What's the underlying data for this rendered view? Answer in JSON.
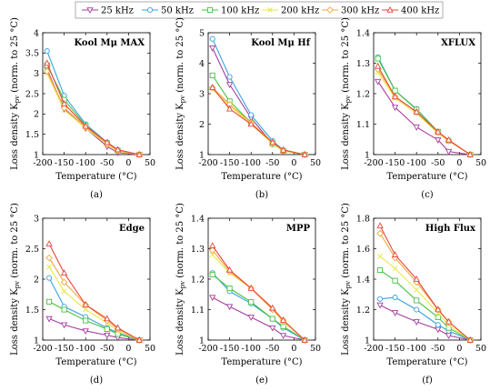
{
  "legend": {
    "entries": [
      {
        "label": "25 kHz",
        "color": "#a53f9f",
        "marker": "tri-down"
      },
      {
        "label": "50 kHz",
        "color": "#3aa3e0",
        "marker": "circle"
      },
      {
        "label": "100 kHz",
        "color": "#48c240",
        "marker": "square"
      },
      {
        "label": "200 kHz",
        "color": "#e8e84a",
        "marker": "x"
      },
      {
        "label": "300 kHz",
        "color": "#f4a742",
        "marker": "diamond"
      },
      {
        "label": "400 kHz",
        "color": "#e8463a",
        "marker": "tri-up"
      }
    ]
  },
  "chart_data": [
    {
      "type": "line",
      "panel": "(a)",
      "title": "Kool Mμ MAX",
      "xlabel": "Temperature (°C)",
      "ylabel": "Loss density K",
      "ylabel_sub": "pv",
      "ylabel_suffix": " (norm. to 25 °C)",
      "xlim": [
        -200,
        50
      ],
      "ylim": [
        1,
        4
      ],
      "xticks": [
        -200,
        -150,
        -100,
        -50,
        0,
        50
      ],
      "yticks": [
        1,
        1.5,
        2,
        2.5,
        3,
        3.5,
        4
      ],
      "yticklabels": [
        "1",
        "1.5",
        "2",
        "2.5",
        "3",
        "3.5",
        "4"
      ],
      "x": [
        -190,
        -150,
        -100,
        -50,
        -25,
        25
      ],
      "series": [
        {
          "name": "25 kHz",
          "values": [
            3.1,
            2.12,
            1.65,
            1.2,
            1.05,
            1.0
          ]
        },
        {
          "name": "50 kHz",
          "values": [
            3.55,
            2.45,
            1.75,
            1.3,
            1.12,
            1.0
          ]
        },
        {
          "name": "100 kHz",
          "values": [
            3.2,
            2.35,
            1.72,
            1.28,
            1.1,
            1.0
          ]
        },
        {
          "name": "200 kHz",
          "values": [
            3.0,
            2.1,
            1.65,
            1.25,
            1.08,
            1.0
          ]
        },
        {
          "name": "300 kHz",
          "values": [
            3.05,
            2.15,
            1.68,
            1.27,
            1.1,
            1.0
          ]
        },
        {
          "name": "400 kHz",
          "values": [
            3.25,
            2.25,
            1.7,
            1.3,
            1.12,
            1.0
          ]
        }
      ]
    },
    {
      "type": "line",
      "panel": "(b)",
      "title": "Kool Mμ Hf",
      "xlabel": "Temperature (°C)",
      "ylabel": "Loss density K",
      "ylabel_sub": "pv",
      "ylabel_suffix": " (norm. to 25 °C)",
      "xlim": [
        -200,
        50
      ],
      "ylim": [
        1,
        5
      ],
      "xticks": [
        -200,
        -150,
        -100,
        -50,
        0,
        50
      ],
      "yticks": [
        1,
        2,
        3,
        4,
        5
      ],
      "yticklabels": [
        "1",
        "2",
        "3",
        "4",
        "5"
      ],
      "x": [
        -190,
        -150,
        -100,
        -50,
        -25,
        25
      ],
      "series": [
        {
          "name": "25 kHz",
          "values": [
            4.5,
            3.3,
            2.2,
            1.35,
            1.12,
            1.0
          ]
        },
        {
          "name": "50 kHz",
          "values": [
            4.8,
            3.55,
            2.3,
            1.45,
            1.15,
            1.0
          ]
        },
        {
          "name": "100 kHz",
          "values": [
            3.6,
            2.75,
            2.05,
            1.35,
            1.12,
            1.0
          ]
        },
        {
          "name": "200 kHz",
          "values": [
            3.15,
            2.6,
            2.0,
            1.35,
            1.12,
            1.0
          ]
        },
        {
          "name": "300 kHz",
          "values": [
            3.2,
            2.65,
            2.05,
            1.4,
            1.15,
            1.0
          ]
        },
        {
          "name": "400 kHz",
          "values": [
            3.2,
            2.5,
            2.0,
            1.4,
            1.15,
            1.0
          ]
        }
      ]
    },
    {
      "type": "line",
      "panel": "(c)",
      "title": "XFLUX",
      "xlabel": "Temperature (°C)",
      "ylabel": "Loss density K",
      "ylabel_sub": "pv",
      "ylabel_suffix": " (norm. to 25 °C)",
      "xlim": [
        -200,
        50
      ],
      "ylim": [
        1,
        1.4
      ],
      "xticks": [
        -200,
        -150,
        -100,
        -50,
        0,
        50
      ],
      "yticks": [
        1,
        1.1,
        1.2,
        1.3,
        1.4
      ],
      "yticklabels": [
        "1",
        "1.1",
        "1.2",
        "1.3",
        "1.4"
      ],
      "x": [
        -190,
        -150,
        -100,
        -50,
        -25,
        25
      ],
      "series": [
        {
          "name": "25 kHz",
          "values": [
            1.24,
            1.155,
            1.09,
            1.048,
            1.01,
            1.0
          ]
        },
        {
          "name": "50 kHz",
          "values": [
            1.32,
            1.21,
            1.15,
            1.075,
            1.045,
            1.0
          ]
        },
        {
          "name": "100 kHz",
          "values": [
            1.315,
            1.21,
            1.148,
            1.075,
            1.045,
            1.0
          ]
        },
        {
          "name": "200 kHz",
          "values": [
            1.27,
            1.185,
            1.135,
            1.07,
            1.045,
            1.0
          ]
        },
        {
          "name": "300 kHz",
          "values": [
            1.28,
            1.19,
            1.14,
            1.072,
            1.045,
            1.0
          ]
        },
        {
          "name": "400 kHz",
          "values": [
            1.29,
            1.19,
            1.14,
            1.075,
            1.048,
            1.0
          ]
        }
      ]
    },
    {
      "type": "line",
      "panel": "(d)",
      "title": "Edge",
      "xlabel": "Temperature (°C)",
      "ylabel": "Loss density K",
      "ylabel_sub": "pv",
      "ylabel_suffix": " (norm. to 25 °C)",
      "xlim": [
        -200,
        50
      ],
      "ylim": [
        1,
        3
      ],
      "xticks": [
        -200,
        -150,
        -100,
        -50,
        0,
        50
      ],
      "yticks": [
        1,
        1.5,
        2,
        2.5,
        3
      ],
      "yticklabels": [
        "1",
        "1.5",
        "2",
        "2.5",
        "3"
      ],
      "x": [
        -185,
        -150,
        -100,
        -50,
        -25,
        25
      ],
      "series": [
        {
          "name": "25 kHz",
          "values": [
            1.35,
            1.25,
            1.15,
            1.08,
            1.04,
            1.0
          ]
        },
        {
          "name": "50 kHz",
          "values": [
            2.02,
            1.55,
            1.38,
            1.2,
            1.12,
            1.0
          ]
        },
        {
          "name": "100 kHz",
          "values": [
            1.63,
            1.5,
            1.32,
            1.18,
            1.1,
            1.0
          ]
        },
        {
          "name": "200 kHz",
          "values": [
            2.2,
            1.8,
            1.5,
            1.28,
            1.15,
            1.0
          ]
        },
        {
          "name": "300 kHz",
          "values": [
            2.35,
            1.95,
            1.58,
            1.32,
            1.18,
            1.0
          ]
        },
        {
          "name": "400 kHz",
          "values": [
            2.58,
            2.1,
            1.58,
            1.35,
            1.2,
            1.0
          ]
        }
      ]
    },
    {
      "type": "line",
      "panel": "(e)",
      "title": "MPP",
      "xlabel": "Temperature (°C)",
      "ylabel": "Loss density K",
      "ylabel_sub": "pv",
      "ylabel_suffix": " (norm. to 25 °C)",
      "xlim": [
        -200,
        50
      ],
      "ylim": [
        1,
        1.4
      ],
      "xticks": [
        -200,
        -150,
        -100,
        -50,
        0,
        50
      ],
      "yticks": [
        1,
        1.1,
        1.2,
        1.3,
        1.4
      ],
      "yticklabels": [
        "1",
        "1.1",
        "1.2",
        "1.3",
        "1.4"
      ],
      "x": [
        -190,
        -150,
        -100,
        -50,
        -25,
        25
      ],
      "series": [
        {
          "name": "25 kHz",
          "values": [
            1.14,
            1.11,
            1.075,
            1.04,
            1.015,
            1.0
          ]
        },
        {
          "name": "50 kHz",
          "values": [
            1.22,
            1.16,
            1.12,
            1.07,
            1.04,
            1.0
          ]
        },
        {
          "name": "100 kHz",
          "values": [
            1.215,
            1.17,
            1.125,
            1.07,
            1.045,
            1.0
          ]
        },
        {
          "name": "200 kHz",
          "values": [
            1.28,
            1.22,
            1.17,
            1.1,
            1.06,
            1.0
          ]
        },
        {
          "name": "300 kHz",
          "values": [
            1.295,
            1.225,
            1.17,
            1.1,
            1.065,
            1.0
          ]
        },
        {
          "name": "400 kHz",
          "values": [
            1.31,
            1.23,
            1.17,
            1.105,
            1.065,
            1.0
          ]
        }
      ]
    },
    {
      "type": "line",
      "panel": "(f)",
      "title": "High Flux",
      "xlabel": "Temperature (°C)",
      "ylabel": "Loss density K",
      "ylabel_sub": "pv",
      "ylabel_suffix": " (norm. to 25 °C)",
      "xlim": [
        -200,
        50
      ],
      "ylim": [
        1,
        1.8
      ],
      "xticks": [
        -200,
        -150,
        -100,
        -50,
        0,
        50
      ],
      "yticks": [
        1,
        1.2,
        1.4,
        1.6,
        1.8
      ],
      "yticklabels": [
        "1",
        "1.2",
        "1.4",
        "1.6",
        "1.8"
      ],
      "x": [
        -185,
        -150,
        -100,
        -50,
        -25,
        25
      ],
      "series": [
        {
          "name": "25 kHz",
          "values": [
            1.23,
            1.18,
            1.12,
            1.07,
            1.03,
            1.0
          ]
        },
        {
          "name": "50 kHz",
          "values": [
            1.27,
            1.28,
            1.2,
            1.1,
            1.06,
            1.0
          ]
        },
        {
          "name": "100 kHz",
          "values": [
            1.46,
            1.39,
            1.26,
            1.15,
            1.08,
            1.0
          ]
        },
        {
          "name": "200 kHz",
          "values": [
            1.55,
            1.47,
            1.33,
            1.18,
            1.1,
            1.0
          ]
        },
        {
          "name": "300 kHz",
          "values": [
            1.7,
            1.54,
            1.38,
            1.2,
            1.12,
            1.0
          ]
        },
        {
          "name": "400 kHz",
          "values": [
            1.75,
            1.56,
            1.4,
            1.2,
            1.12,
            1.0
          ]
        }
      ]
    }
  ]
}
